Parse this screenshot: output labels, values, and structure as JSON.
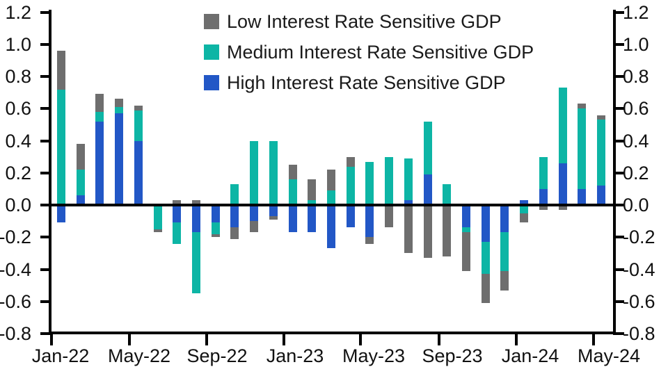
{
  "chart_data": {
    "type": "bar",
    "stacked": true,
    "title": "",
    "xlabel": "",
    "ylabel": "",
    "ylim": [
      -0.8,
      1.2
    ],
    "grid": false,
    "legend_position": "top-center-inside",
    "background_color": "#ffffff",
    "axis_color": "#000000",
    "categories": [
      "Jan-22",
      "Feb-22",
      "Mar-22",
      "Apr-22",
      "May-22",
      "Jun-22",
      "Jul-22",
      "Aug-22",
      "Sep-22",
      "Oct-22",
      "Nov-22",
      "Dec-22",
      "Jan-23",
      "Feb-23",
      "Mar-23",
      "Apr-23",
      "May-23",
      "Jun-23",
      "Jul-23",
      "Aug-23",
      "Sep-23",
      "Oct-23",
      "Nov-23",
      "Dec-23",
      "Jan-24",
      "Feb-24",
      "Mar-24",
      "Apr-24",
      "May-24"
    ],
    "series": [
      {
        "name": "Low Interest Rate Sensitive GDP",
        "color": "#6e6e6e",
        "values": [
          0.24,
          0.16,
          0.11,
          0.05,
          0.03,
          -0.02,
          0.03,
          0.03,
          -0.02,
          -0.07,
          -0.07,
          -0.02,
          0.09,
          0.13,
          0.13,
          0.06,
          -0.04,
          -0.14,
          -0.3,
          -0.33,
          -0.32,
          -0.24,
          -0.18,
          -0.12,
          -0.06,
          -0.03,
          -0.03,
          0.03,
          0.03
        ]
      },
      {
        "name": "Medium Interest Rate Sensitive GDP",
        "color": "#0db5a5",
        "values": [
          0.72,
          0.16,
          0.06,
          0.04,
          0.19,
          -0.15,
          -0.13,
          -0.38,
          -0.07,
          0.13,
          0.4,
          0.4,
          0.16,
          0.03,
          0.09,
          0.24,
          0.27,
          0.3,
          0.26,
          0.33,
          0.13,
          -0.03,
          -0.2,
          -0.24,
          -0.05,
          0.2,
          0.47,
          0.5,
          0.41
        ]
      },
      {
        "name": "High Interest Rate Sensitive GDP",
        "color": "#2257c6",
        "values": [
          -0.11,
          0.06,
          0.52,
          0.57,
          0.4,
          0,
          -0.11,
          -0.17,
          -0.11,
          -0.14,
          -0.1,
          -0.07,
          -0.17,
          -0.17,
          -0.27,
          -0.14,
          -0.2,
          0,
          0.03,
          0.19,
          0,
          -0.14,
          -0.23,
          -0.17,
          0.03,
          0.1,
          0.26,
          0.1,
          0.12
        ]
      }
    ],
    "stack_order_from_zero": [
      "High Interest Rate Sensitive GDP",
      "Medium Interest Rate Sensitive GDP",
      "Low Interest Rate Sensitive GDP"
    ],
    "y_tick_labels_left": [
      "1.2",
      "1.0",
      "0.8",
      "0.6",
      "0.4",
      "0.2",
      "0.0",
      "-0.2",
      "-0.4",
      "-0.6",
      "-0.8"
    ],
    "y_tick_labels_right": [
      "1.2",
      "1.0",
      "0.8",
      "0.6",
      "0.4",
      "0.2",
      "0.0",
      "-0.2",
      "-0.4",
      "-0.6",
      "-0.8"
    ],
    "y_tick_values": [
      1.2,
      1.0,
      0.8,
      0.6,
      0.4,
      0.2,
      0.0,
      -0.2,
      -0.4,
      -0.6,
      -0.8
    ],
    "x_tick_labels": [
      "Jan-22",
      "May-22",
      "Sep-22",
      "Jan-23",
      "May-23",
      "Sep-23",
      "Jan-24",
      "May-24"
    ]
  }
}
